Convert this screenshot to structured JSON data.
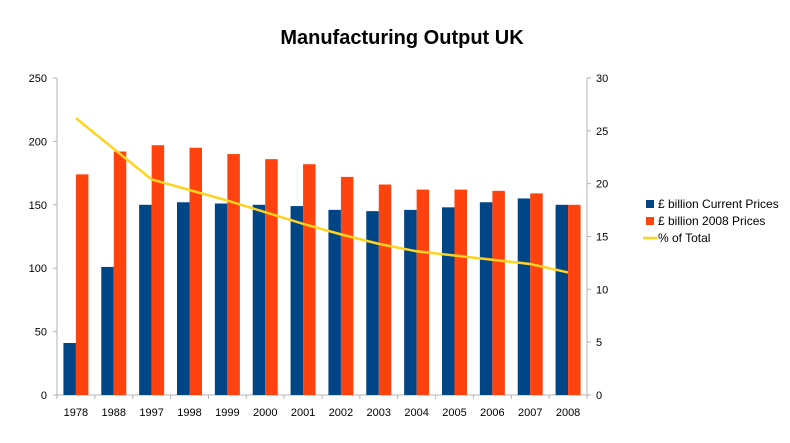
{
  "chart_data": {
    "type": "bar",
    "title": "Manufacturing Output UK",
    "categories": [
      "1978",
      "1988",
      "1997",
      "1998",
      "1999",
      "2000",
      "2001",
      "2002",
      "2003",
      "2004",
      "2005",
      "2006",
      "2007",
      "2008"
    ],
    "series": [
      {
        "name": "£ billion Current Prices",
        "type": "bar",
        "axis": "left",
        "color": "#004586",
        "values": [
          41,
          101,
          150,
          152,
          151,
          150,
          149,
          146,
          145,
          146,
          148,
          152,
          155,
          150
        ]
      },
      {
        "name": "£ billion 2008 Prices",
        "type": "bar",
        "axis": "left",
        "color": "#ff420e",
        "values": [
          174,
          192,
          197,
          195,
          190,
          186,
          182,
          172,
          166,
          162,
          162,
          161,
          159,
          150
        ]
      },
      {
        "name": "% of Total",
        "type": "line",
        "axis": "right",
        "color": "#ffd320",
        "values": [
          26.2,
          23.3,
          20.4,
          19.4,
          18.4,
          17.3,
          16.2,
          15.2,
          14.3,
          13.6,
          13.2,
          12.8,
          12.4,
          11.6
        ]
      }
    ],
    "y_left": {
      "min": 0,
      "max": 250,
      "ticks": [
        "0",
        "50",
        "100",
        "150",
        "200",
        "250"
      ]
    },
    "y_right": {
      "min": 0,
      "max": 30,
      "ticks": [
        "0",
        "5",
        "10",
        "15",
        "20",
        "25",
        "30"
      ]
    },
    "grid": false,
    "legend_position": "right"
  }
}
